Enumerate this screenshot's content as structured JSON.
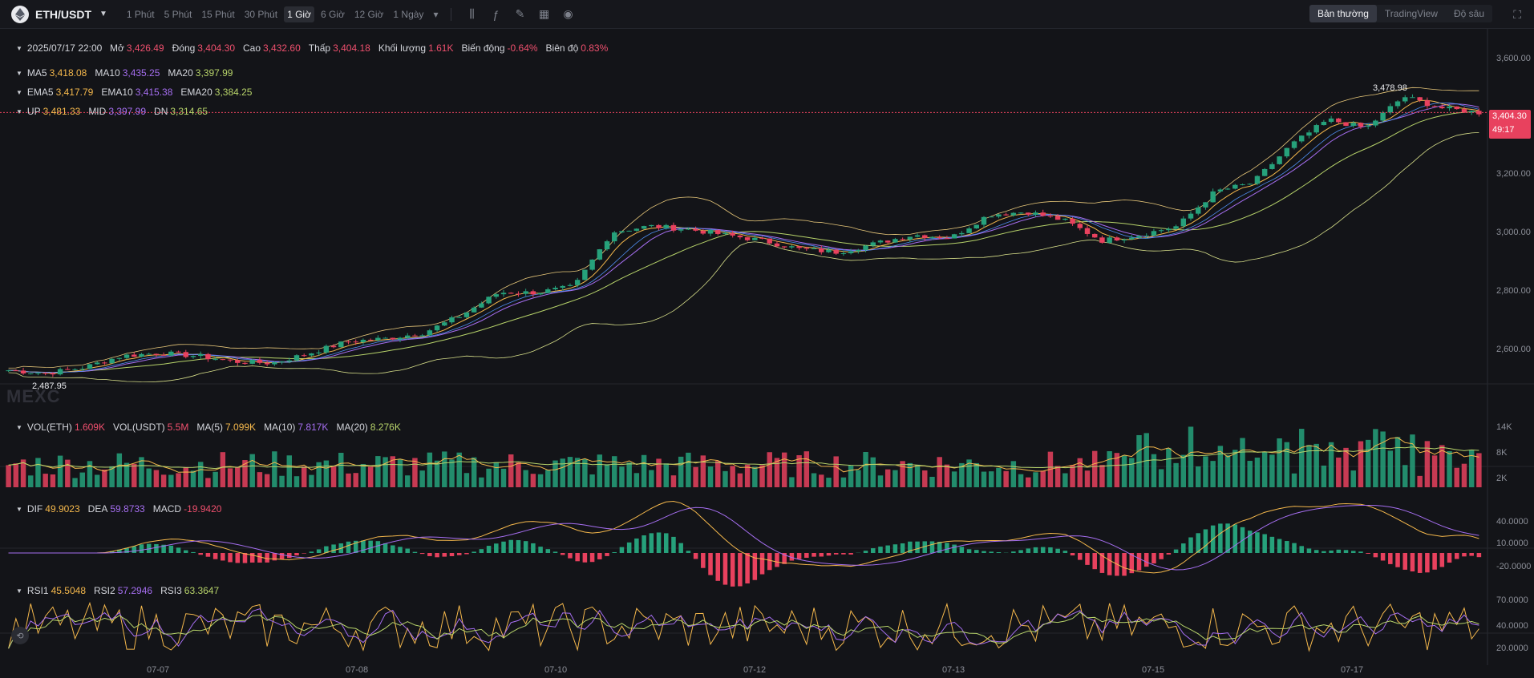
{
  "header": {
    "pair": "ETH/USDT",
    "intervals": [
      "1 Phút",
      "5 Phút",
      "15 Phút",
      "30 Phút",
      "1 Giờ",
      "6 Giờ",
      "12 Giờ",
      "1 Ngày"
    ],
    "active_interval": "1 Giờ",
    "view_tabs": [
      "Bản thường",
      "TradingView",
      "Độ sâu"
    ],
    "active_view": "Bản thường"
  },
  "ohlc": {
    "date": "2025/07/17 22:00",
    "open_label": "Mở",
    "open": "3,426.49",
    "close_label": "Đóng",
    "close": "3,404.30",
    "high_label": "Cao",
    "high": "3,432.60",
    "low_label": "Thấp",
    "low": "3,404.18",
    "vol_label": "Khối lượng",
    "vol": "1.61K",
    "change_label": "Biến động",
    "change": "-0.64%",
    "amp_label": "Biên độ",
    "amp": "0.83%"
  },
  "ma": {
    "ma5_label": "MA5",
    "ma5": "3,418.08",
    "ma10_label": "MA10",
    "ma10": "3,435.25",
    "ma20_label": "MA20",
    "ma20": "3,397.99"
  },
  "ema": {
    "ema5_label": "EMA5",
    "ema5": "3,417.79",
    "ema10_label": "EMA10",
    "ema10": "3,415.38",
    "ema20_label": "EMA20",
    "ema20": "3,384.25"
  },
  "boll": {
    "up_label": "UP",
    "up": "3,481.33",
    "mid_label": "MID",
    "mid": "3,397.99",
    "dn_label": "DN",
    "dn": "3,314.65"
  },
  "vol": {
    "eth_label": "VOL(ETH)",
    "eth": "1.609K",
    "usdt_label": "VOL(USDT)",
    "usdt": "5.5M",
    "ma5_label": "MA(5)",
    "ma5": "7.099K",
    "ma10_label": "MA(10)",
    "ma10": "7.817K",
    "ma20_label": "MA(20)",
    "ma20": "8.276K",
    "axis": [
      "14K",
      "8K",
      "2K"
    ]
  },
  "macd": {
    "dif_label": "DIF",
    "dif": "49.9023",
    "dea_label": "DEA",
    "dea": "59.8733",
    "macd_label": "MACD",
    "macd": "-19.9420",
    "axis": [
      "40.0000",
      "10.0000",
      "-20.0000"
    ]
  },
  "rsi": {
    "rsi1_label": "RSI1",
    "rsi1": "45.5048",
    "rsi2_label": "RSI2",
    "rsi2": "57.2946",
    "rsi3_label": "RSI3",
    "rsi3": "63.3647",
    "axis": [
      "70.0000",
      "40.0000",
      "20.0000"
    ]
  },
  "price_axis": [
    "3,600.00",
    "3,200.00",
    "3,000.00",
    "2,800.00",
    "2,600.00"
  ],
  "current_price": "3,404.30",
  "countdown": "49:17",
  "high_marker": "3,478.98",
  "low_marker": "2,487.95",
  "watermark": "MEXC",
  "time_axis": [
    "07-07",
    "07-08",
    "07-10",
    "07-12",
    "07-13",
    "07-15",
    "07-17"
  ],
  "chart_data": {
    "type": "candlestick",
    "interval": "1 Giờ",
    "approx_close_path": [
      2510,
      2500,
      2520,
      2560,
      2570,
      2560,
      2540,
      2535,
      2570,
      2610,
      2620,
      2640,
      2700,
      2780,
      2780,
      2800,
      2990,
      3010,
      3000,
      2980,
      2960,
      2930,
      2920,
      2950,
      2980,
      2970,
      3050,
      3060,
      3030,
      2960,
      2980,
      3010,
      3130,
      3160,
      3290,
      3380,
      3350,
      3460,
      3420,
      3404
    ],
    "ylim": [
      2487.95,
      3600
    ]
  },
  "colors": {
    "up": "#26a17b",
    "down": "#e8415e",
    "bg": "#131418",
    "ma5": "#f5b84c",
    "ma10": "#a56ef0",
    "ma20": "#b7d36a"
  }
}
